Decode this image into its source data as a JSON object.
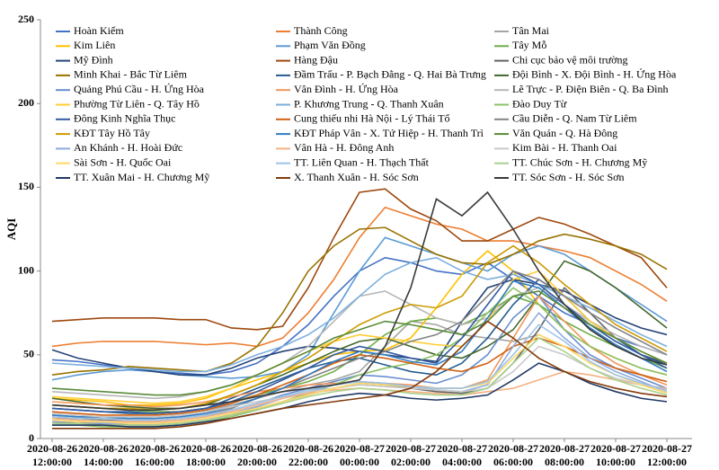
{
  "chart_data": {
    "type": "line",
    "y_label": "AQI",
    "categories": [
      "2020-08-26 12:00:00",
      null,
      "2020-08-26 14:00:00",
      null,
      "2020-08-26 16:00:00",
      null,
      "2020-08-26 18:00:00",
      null,
      "2020-08-26 20:00:00",
      null,
      "2020-08-26 22:00:00",
      null,
      "2020-08-27 00:00:00",
      null,
      "2020-08-27 02:00:00",
      null,
      "2020-08-27 04:00:00",
      null,
      "2020-08-27 06:00:00",
      null,
      "2020-08-27 08:00:00",
      null,
      "2020-08-27 10:00:00",
      null,
      "2020-08-27 12:00:00"
    ],
    "ylim": [
      0,
      250
    ],
    "yticks": [
      0,
      50,
      100,
      150,
      200,
      250
    ],
    "grid": false,
    "series": [
      {
        "name": "Hoàn Kiếm",
        "color": "#4472C4",
        "values": [
          47,
          46,
          44,
          42,
          40,
          39,
          38,
          40,
          45,
          55,
          68,
          85,
          100,
          108,
          105,
          100,
          98,
          105,
          95,
          85,
          75,
          68,
          60,
          55,
          50
        ]
      },
      {
        "name": "Thành Công",
        "color": "#ED7D31",
        "values": [
          55,
          57,
          58,
          58,
          58,
          57,
          56,
          57,
          55,
          60,
          75,
          95,
          120,
          138,
          133,
          128,
          125,
          118,
          118,
          115,
          112,
          108,
          100,
          92,
          82
        ]
      },
      {
        "name": "Tân Mai",
        "color": "#A5A5A5",
        "values": [
          14,
          13,
          12,
          12,
          13,
          14,
          16,
          20,
          24,
          28,
          32,
          35,
          40,
          55,
          70,
          68,
          62,
          60,
          58,
          62,
          55,
          48,
          42,
          38,
          34
        ]
      },
      {
        "name": "Kim Liên",
        "color": "#FFC000",
        "values": [
          24,
          23,
          22,
          20,
          20,
          21,
          24,
          30,
          35,
          40,
          45,
          50,
          52,
          53,
          60,
          78,
          98,
          112,
          100,
          80,
          65,
          55,
          48,
          42,
          38
        ]
      },
      {
        "name": "Phạm Văn Đồng",
        "color": "#5B9BD5",
        "values": [
          35,
          38,
          40,
          41,
          40,
          38,
          37,
          36,
          37,
          40,
          50,
          75,
          100,
          120,
          115,
          110,
          105,
          100,
          110,
          115,
          110,
          100,
          90,
          80,
          70
        ]
      },
      {
        "name": "Tây Mỗ",
        "color": "#70AD47",
        "values": [
          20,
          19,
          18,
          17,
          16,
          16,
          18,
          22,
          26,
          30,
          34,
          40,
          50,
          62,
          70,
          72,
          68,
          75,
          85,
          80,
          70,
          62,
          55,
          48,
          42
        ]
      },
      {
        "name": "Mỹ Đình",
        "color": "#264478",
        "values": [
          53,
          48,
          45,
          42,
          40,
          38,
          38,
          42,
          48,
          52,
          55,
          54,
          52,
          50,
          48,
          46,
          70,
          90,
          95,
          92,
          88,
          80,
          72,
          66,
          62
        ]
      },
      {
        "name": "Hàng Đậu",
        "color": "#9E480E",
        "values": [
          70,
          71,
          72,
          72,
          72,
          71,
          71,
          66,
          65,
          67,
          90,
          120,
          147,
          149,
          137,
          130,
          118,
          118,
          125,
          132,
          128,
          122,
          115,
          108,
          90
        ]
      },
      {
        "name": "Chi cục bảo vệ môi trường",
        "color": "#636363",
        "values": [
          10,
          9,
          9,
          8,
          8,
          9,
          11,
          14,
          18,
          22,
          26,
          30,
          33,
          32,
          30,
          28,
          27,
          30,
          45,
          65,
          90,
          75,
          60,
          50,
          45
        ]
      },
      {
        "name": "Minh Khai - Bắc Từ Liêm",
        "color": "#997300",
        "values": [
          38,
          40,
          41,
          43,
          42,
          41,
          40,
          45,
          55,
          75,
          100,
          115,
          125,
          126,
          118,
          110,
          105,
          104,
          110,
          118,
          122,
          119,
          115,
          110,
          101
        ]
      },
      {
        "name": "Đầm Trấu - P. Bạch Đằng - Q. Hai Bà Trưng",
        "color": "#255E91",
        "values": [
          18,
          17,
          16,
          15,
          15,
          16,
          18,
          24,
          30,
          36,
          42,
          46,
          48,
          44,
          40,
          38,
          45,
          60,
          80,
          95,
          85,
          70,
          60,
          50,
          44
        ]
      },
      {
        "name": "Đội Bình - X. Đội Bình - H. Ứng Hòa",
        "color": "#43682B",
        "values": [
          24,
          22,
          20,
          19,
          18,
          18,
          20,
          26,
          32,
          38,
          45,
          52,
          58,
          60,
          55,
          50,
          48,
          55,
          65,
          85,
          106,
          100,
          90,
          78,
          66
        ]
      },
      {
        "name": "Quảng Phú Cầu - H. Ứng Hòa",
        "color": "#698ED0",
        "values": [
          12,
          11,
          10,
          10,
          10,
          11,
          13,
          17,
          21,
          26,
          30,
          34,
          38,
          37,
          35,
          33,
          38,
          50,
          72,
          85,
          65,
          50,
          42,
          36,
          30
        ]
      },
      {
        "name": "Vân Đình - H. Ứng Hòa",
        "color": "#F1975A",
        "values": [
          22,
          21,
          20,
          20,
          19,
          20,
          22,
          25,
          28,
          30,
          32,
          33,
          34,
          33,
          32,
          30,
          30,
          35,
          60,
          85,
          70,
          55,
          45,
          38,
          32
        ]
      },
      {
        "name": "Lê Trực - P. Điện Biên - Q. Ba Đình",
        "color": "#B7B7B7",
        "values": [
          28,
          27,
          26,
          25,
          24,
          25,
          28,
          32,
          38,
          45,
          55,
          70,
          85,
          88,
          80,
          72,
          68,
          72,
          85,
          90,
          80,
          70,
          62,
          55,
          50
        ]
      },
      {
        "name": "Phường Từ Liên - Q. Tây Hồ",
        "color": "#FFCD33",
        "values": [
          25,
          24,
          23,
          22,
          21,
          22,
          25,
          30,
          38,
          45,
          52,
          58,
          62,
          60,
          58,
          56,
          55,
          70,
          95,
          100,
          85,
          70,
          60,
          52,
          45
        ]
      },
      {
        "name": "P. Khương Trung - Q. Thanh Xuân",
        "color": "#7CAFDD",
        "values": [
          45,
          44,
          43,
          42,
          41,
          40,
          40,
          44,
          50,
          55,
          62,
          72,
          85,
          98,
          105,
          108,
          100,
          95,
          98,
          92,
          85,
          78,
          70,
          62,
          55
        ]
      },
      {
        "name": "Đào Duy Từ",
        "color": "#8CC168",
        "values": [
          8,
          8,
          7,
          7,
          7,
          8,
          10,
          13,
          17,
          22,
          27,
          32,
          38,
          42,
          45,
          50,
          60,
          75,
          90,
          80,
          65,
          55,
          48,
          42,
          38
        ]
      },
      {
        "name": "Đông Kinh Nghĩa Thục",
        "color": "#335AA1",
        "values": [
          18,
          17,
          16,
          16,
          15,
          16,
          18,
          22,
          28,
          35,
          42,
          50,
          55,
          52,
          48,
          45,
          60,
          80,
          100,
          92,
          80,
          68,
          58,
          50,
          42
        ]
      },
      {
        "name": "Cung thiếu nhi Hà Nội - Lý Thái Tổ",
        "color": "#D26012",
        "values": [
          16,
          15,
          14,
          14,
          14,
          15,
          17,
          21,
          26,
          32,
          38,
          45,
          50,
          48,
          45,
          42,
          40,
          45,
          55,
          60,
          55,
          48,
          42,
          38,
          34
        ]
      },
      {
        "name": "Cầu Diễn - Q. Nam Từ Liêm",
        "color": "#848484",
        "values": [
          12,
          12,
          11,
          11,
          11,
          12,
          14,
          18,
          24,
          30,
          36,
          42,
          48,
          52,
          58,
          62,
          70,
          85,
          100,
          95,
          85,
          75,
          66,
          58,
          50
        ]
      },
      {
        "name": "KĐT Tây Hồ Tây",
        "color": "#CC9A00",
        "values": [
          20,
          19,
          18,
          18,
          17,
          18,
          21,
          26,
          32,
          40,
          48,
          58,
          68,
          75,
          80,
          78,
          85,
          105,
          115,
          105,
          92,
          80,
          68,
          60,
          52
        ]
      },
      {
        "name": "KĐT Pháp Vân - X. Tứ Hiệp - H. Thanh Trì",
        "color": "#327DC2",
        "values": [
          14,
          13,
          13,
          12,
          12,
          13,
          15,
          19,
          24,
          30,
          38,
          46,
          52,
          50,
          46,
          44,
          52,
          72,
          94,
          90,
          78,
          66,
          56,
          48,
          40
        ]
      },
      {
        "name": "Văn Quán - Q. Hà Đông",
        "color": "#5A8A39",
        "values": [
          30,
          29,
          28,
          27,
          26,
          26,
          28,
          32,
          38,
          45,
          52,
          60,
          65,
          70,
          68,
          65,
          62,
          70,
          85,
          88,
          78,
          68,
          60,
          52,
          45
        ]
      },
      {
        "name": "An Khánh - H. Hoài Đức",
        "color": "#8FAADC",
        "values": [
          10,
          10,
          9,
          9,
          9,
          10,
          12,
          15,
          19,
          24,
          28,
          32,
          34,
          33,
          31,
          29,
          28,
          32,
          55,
          75,
          60,
          48,
          40,
          34,
          28
        ]
      },
      {
        "name": "Vân Hà - H. Đông Anh",
        "color": "#F4B183",
        "values": [
          12,
          11,
          10,
          10,
          10,
          11,
          13,
          16,
          20,
          24,
          27,
          29,
          30,
          29,
          28,
          27,
          26,
          28,
          30,
          35,
          40,
          38,
          35,
          32,
          30
        ]
      },
      {
        "name": "Kim Bài - H. Thanh Oai",
        "color": "#C9C9C9",
        "values": [
          15,
          14,
          13,
          13,
          13,
          14,
          16,
          19,
          22,
          25,
          28,
          30,
          32,
          31,
          30,
          29,
          28,
          30,
          40,
          55,
          50,
          42,
          36,
          32,
          28
        ]
      },
      {
        "name": "Sài Sơn - H. Quốc Oai",
        "color": "#FFD966",
        "values": [
          11,
          10,
          10,
          9,
          9,
          10,
          12,
          15,
          18,
          22,
          26,
          30,
          33,
          32,
          31,
          30,
          30,
          33,
          48,
          62,
          55,
          45,
          38,
          32,
          27
        ]
      },
      {
        "name": "TT. Liên Quan - H. Thạch Thất",
        "color": "#9DC3E6",
        "values": [
          13,
          12,
          12,
          11,
          11,
          12,
          14,
          17,
          21,
          25,
          29,
          32,
          34,
          33,
          31,
          30,
          30,
          34,
          50,
          68,
          58,
          46,
          38,
          33,
          29
        ]
      },
      {
        "name": "TT. Chúc Sơn - H. Chương Mỹ",
        "color": "#A9D18E",
        "values": [
          9,
          9,
          8,
          8,
          8,
          9,
          11,
          14,
          17,
          21,
          25,
          28,
          30,
          29,
          27,
          26,
          26,
          30,
          45,
          60,
          52,
          42,
          35,
          30,
          26
        ]
      },
      {
        "name": "TT. Xuân Mai - H. Chương Mỹ",
        "color": "#203864",
        "values": [
          8,
          8,
          8,
          7,
          7,
          8,
          10,
          12,
          15,
          18,
          22,
          25,
          27,
          26,
          24,
          23,
          24,
          26,
          35,
          45,
          40,
          33,
          28,
          24,
          22
        ]
      },
      {
        "name": "X. Thanh Xuân - H. Sóc Sơn",
        "color": "#843C0C",
        "values": [
          6,
          6,
          6,
          6,
          6,
          7,
          9,
          12,
          15,
          18,
          20,
          22,
          24,
          26,
          30,
          40,
          55,
          70,
          60,
          48,
          40,
          34,
          30,
          27,
          25
        ]
      },
      {
        "name": "TT. Sóc Sơn - H. Sóc Sơn",
        "color": "#3A3A3A",
        "values": [
          20,
          19,
          18,
          17,
          17,
          18,
          20,
          22,
          25,
          28,
          30,
          32,
          35,
          55,
          90,
          143,
          133,
          147,
          125,
          100,
          80,
          65,
          55,
          48,
          44
        ]
      }
    ]
  }
}
